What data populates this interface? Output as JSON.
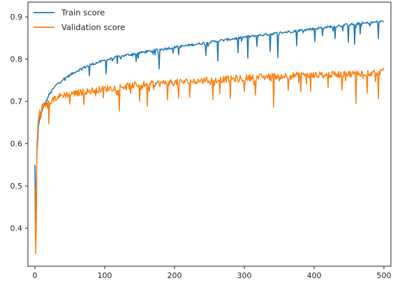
{
  "chart_data": {
    "type": "line",
    "title": "",
    "xlabel": "",
    "ylabel": "",
    "xlim": [
      -10,
      510
    ],
    "ylim": [
      0.31,
      0.935
    ],
    "x_ticks": [
      0,
      100,
      200,
      300,
      400,
      500
    ],
    "y_ticks": [
      0.4,
      0.5,
      0.6,
      0.7,
      0.8,
      0.9
    ],
    "x_tick_labels": [
      "0",
      "100",
      "200",
      "300",
      "400",
      "500"
    ],
    "y_tick_labels": [
      "0.4",
      "0.5",
      "0.6",
      "0.7",
      "0.8",
      "0.9"
    ],
    "grid": false,
    "legend_position": "top-left",
    "x_count": 500,
    "series": [
      {
        "name": "Train score",
        "color": "#1f77b4",
        "anchors": [
          [
            0,
            0.55
          ],
          [
            1,
            0.37
          ],
          [
            2,
            0.5
          ],
          [
            3,
            0.58
          ],
          [
            5,
            0.64
          ],
          [
            8,
            0.67
          ],
          [
            12,
            0.685
          ],
          [
            15,
            0.695
          ],
          [
            20,
            0.715
          ],
          [
            30,
            0.738
          ],
          [
            40,
            0.752
          ],
          [
            50,
            0.762
          ],
          [
            60,
            0.772
          ],
          [
            70,
            0.78
          ],
          [
            80,
            0.787
          ],
          [
            100,
            0.797
          ],
          [
            120,
            0.806
          ],
          [
            150,
            0.815
          ],
          [
            180,
            0.823
          ],
          [
            200,
            0.828
          ],
          [
            250,
            0.84
          ],
          [
            300,
            0.852
          ],
          [
            350,
            0.862
          ],
          [
            400,
            0.872
          ],
          [
            450,
            0.882
          ],
          [
            480,
            0.886
          ],
          [
            500,
            0.89
          ]
        ],
        "dips": [
          [
            78,
            0.025
          ],
          [
            102,
            0.03
          ],
          [
            118,
            0.015
          ],
          [
            145,
            0.02
          ],
          [
            178,
            0.045
          ],
          [
            206,
            0.02
          ],
          [
            245,
            0.03
          ],
          [
            262,
            0.045
          ],
          [
            291,
            0.035
          ],
          [
            305,
            0.05
          ],
          [
            318,
            0.025
          ],
          [
            337,
            0.04
          ],
          [
            348,
            0.05
          ],
          [
            375,
            0.035
          ],
          [
            401,
            0.03
          ],
          [
            412,
            0.02
          ],
          [
            430,
            0.03
          ],
          [
            449,
            0.04
          ],
          [
            458,
            0.05
          ],
          [
            466,
            0.025
          ],
          [
            492,
            0.04
          ]
        ]
      },
      {
        "name": "Validation score",
        "color": "#ff7f0e",
        "anchors": [
          [
            0,
            0.5
          ],
          [
            1,
            0.34
          ],
          [
            2,
            0.4
          ],
          [
            3,
            0.6
          ],
          [
            5,
            0.66
          ],
          [
            8,
            0.68
          ],
          [
            12,
            0.69
          ],
          [
            18,
            0.695
          ],
          [
            25,
            0.705
          ],
          [
            40,
            0.715
          ],
          [
            60,
            0.72
          ],
          [
            100,
            0.73
          ],
          [
            150,
            0.74
          ],
          [
            200,
            0.745
          ],
          [
            250,
            0.75
          ],
          [
            300,
            0.755
          ],
          [
            350,
            0.76
          ],
          [
            400,
            0.762
          ],
          [
            450,
            0.765
          ],
          [
            500,
            0.77
          ]
        ],
        "dips": [
          [
            20,
            0.04
          ],
          [
            50,
            0.025
          ],
          [
            70,
            0.03
          ],
          [
            98,
            0.02
          ],
          [
            121,
            0.035
          ],
          [
            137,
            0.025
          ],
          [
            150,
            0.03
          ],
          [
            161,
            0.06
          ],
          [
            190,
            0.035
          ],
          [
            206,
            0.04
          ],
          [
            222,
            0.035
          ],
          [
            255,
            0.04
          ],
          [
            265,
            0.025
          ],
          [
            280,
            0.045
          ],
          [
            300,
            0.025
          ],
          [
            316,
            0.04
          ],
          [
            342,
            0.065
          ],
          [
            363,
            0.03
          ],
          [
            381,
            0.035
          ],
          [
            395,
            0.04
          ],
          [
            420,
            0.03
          ],
          [
            440,
            0.035
          ],
          [
            460,
            0.075
          ],
          [
            476,
            0.04
          ],
          [
            492,
            0.055
          ]
        ]
      }
    ]
  }
}
